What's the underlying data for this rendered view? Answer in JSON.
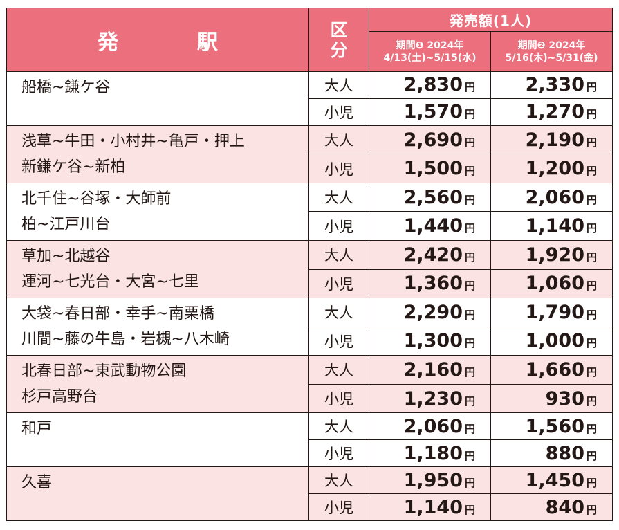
{
  "header": {
    "station": "発　駅",
    "kubun_1": "区",
    "kubun_2": "分",
    "price": "発売額(1人)",
    "period1_line1": "期間❶ 2024年",
    "period1_line2": "4/13(土)~5/15(水)",
    "period2_line1": "期間❷ 2024年",
    "period2_line2": "5/16(木)~5/31(金)"
  },
  "labels": {
    "adult": "大人",
    "child": "小児",
    "yen": "円"
  },
  "rows": [
    {
      "station_line1": "船橋~鎌ケ谷",
      "station_line2": "",
      "adult_p1": "2,830",
      "adult_p2": "2,330",
      "child_p1": "1,570",
      "child_p2": "1,270"
    },
    {
      "station_line1": "浅草~牛田・小村井~亀戸・押上",
      "station_line2": "新鎌ケ谷~新柏",
      "adult_p1": "2,690",
      "adult_p2": "2,190",
      "child_p1": "1,500",
      "child_p2": "1,200"
    },
    {
      "station_line1": "北千住~谷塚・大師前",
      "station_line2": "柏~江戸川台",
      "adult_p1": "2,560",
      "adult_p2": "2,060",
      "child_p1": "1,440",
      "child_p2": "1,140"
    },
    {
      "station_line1": "草加~北越谷",
      "station_line2": "運河~七光台・大宮~七里",
      "adult_p1": "2,420",
      "adult_p2": "1,920",
      "child_p1": "1,360",
      "child_p2": "1,060"
    },
    {
      "station_line1": "大袋~春日部・幸手~南栗橋",
      "station_line2": "川間~藤の牛島・岩槻~八木崎",
      "adult_p1": "2,290",
      "adult_p2": "1,790",
      "child_p1": "1,300",
      "child_p2": "1,000"
    },
    {
      "station_line1": "北春日部~東武動物公園",
      "station_line2": "杉戸高野台",
      "adult_p1": "2,160",
      "adult_p2": "1,660",
      "child_p1": "1,230",
      "child_p2": "930"
    },
    {
      "station_line1": "和戸",
      "station_line2": "",
      "adult_p1": "2,060",
      "adult_p2": "1,560",
      "child_p1": "1,180",
      "child_p2": "880"
    },
    {
      "station_line1": "久喜",
      "station_line2": "",
      "adult_p1": "1,950",
      "adult_p2": "1,450",
      "child_p1": "1,140",
      "child_p2": "840"
    }
  ],
  "colors": {
    "header_bg": "#ec6f7e",
    "alt_row_bg": "#fbe3e4",
    "text": "#231815"
  }
}
